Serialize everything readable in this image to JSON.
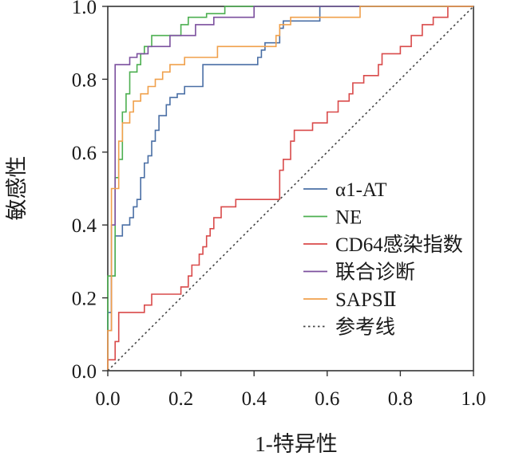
{
  "chart_data": {
    "type": "line",
    "title": "",
    "xlabel": "1-特异性",
    "ylabel": "敏感性",
    "xlim": [
      0,
      1
    ],
    "ylim": [
      0,
      1
    ],
    "xticks": [
      "0.0",
      "0.2",
      "0.4",
      "0.6",
      "0.8",
      "1.0"
    ],
    "yticks": [
      "0.0",
      "0.2",
      "0.4",
      "0.6",
      "0.8",
      "1.0"
    ],
    "grid": false,
    "legend_position": "lower-right",
    "series": [
      {
        "name": "α1-AT",
        "color": "#4a6fa5",
        "style": "solid",
        "points": [
          [
            0,
            0
          ],
          [
            0,
            0.16
          ],
          [
            0.01,
            0.16
          ],
          [
            0.01,
            0.26
          ],
          [
            0.02,
            0.26
          ],
          [
            0.02,
            0.37
          ],
          [
            0.04,
            0.37
          ],
          [
            0.04,
            0.4
          ],
          [
            0.06,
            0.4
          ],
          [
            0.06,
            0.42
          ],
          [
            0.07,
            0.42
          ],
          [
            0.07,
            0.45
          ],
          [
            0.08,
            0.45
          ],
          [
            0.08,
            0.47
          ],
          [
            0.09,
            0.47
          ],
          [
            0.09,
            0.53
          ],
          [
            0.1,
            0.53
          ],
          [
            0.1,
            0.57
          ],
          [
            0.11,
            0.57
          ],
          [
            0.11,
            0.59
          ],
          [
            0.12,
            0.59
          ],
          [
            0.12,
            0.63
          ],
          [
            0.13,
            0.63
          ],
          [
            0.13,
            0.66
          ],
          [
            0.14,
            0.66
          ],
          [
            0.14,
            0.7
          ],
          [
            0.16,
            0.7
          ],
          [
            0.16,
            0.73
          ],
          [
            0.17,
            0.73
          ],
          [
            0.17,
            0.75
          ],
          [
            0.19,
            0.75
          ],
          [
            0.19,
            0.76
          ],
          [
            0.21,
            0.76
          ],
          [
            0.21,
            0.78
          ],
          [
            0.26,
            0.78
          ],
          [
            0.26,
            0.84
          ],
          [
            0.41,
            0.84
          ],
          [
            0.41,
            0.86
          ],
          [
            0.42,
            0.86
          ],
          [
            0.42,
            0.88
          ],
          [
            0.43,
            0.88
          ],
          [
            0.43,
            0.9
          ],
          [
            0.47,
            0.9
          ],
          [
            0.47,
            0.94
          ],
          [
            0.48,
            0.94
          ],
          [
            0.48,
            0.96
          ],
          [
            0.58,
            0.96
          ],
          [
            0.58,
            1.0
          ],
          [
            1.0,
            1.0
          ]
        ]
      },
      {
        "name": "NE",
        "color": "#4caf50",
        "style": "solid",
        "points": [
          [
            0,
            0
          ],
          [
            0,
            0.26
          ],
          [
            0.02,
            0.26
          ],
          [
            0.02,
            0.53
          ],
          [
            0.03,
            0.53
          ],
          [
            0.03,
            0.58
          ],
          [
            0.04,
            0.58
          ],
          [
            0.04,
            0.71
          ],
          [
            0.05,
            0.71
          ],
          [
            0.05,
            0.76
          ],
          [
            0.06,
            0.76
          ],
          [
            0.06,
            0.82
          ],
          [
            0.08,
            0.82
          ],
          [
            0.08,
            0.84
          ],
          [
            0.09,
            0.84
          ],
          [
            0.09,
            0.87
          ],
          [
            0.1,
            0.87
          ],
          [
            0.1,
            0.89
          ],
          [
            0.12,
            0.89
          ],
          [
            0.12,
            0.92
          ],
          [
            0.2,
            0.92
          ],
          [
            0.2,
            0.95
          ],
          [
            0.22,
            0.95
          ],
          [
            0.22,
            0.97
          ],
          [
            0.27,
            0.97
          ],
          [
            0.27,
            0.98
          ],
          [
            0.32,
            0.98
          ],
          [
            0.32,
            1.0
          ],
          [
            1.0,
            1.0
          ]
        ]
      },
      {
        "name": "CD64感染指数",
        "color": "#d94a4a",
        "style": "solid",
        "points": [
          [
            0,
            0
          ],
          [
            0,
            0.03
          ],
          [
            0.02,
            0.03
          ],
          [
            0.02,
            0.08
          ],
          [
            0.03,
            0.08
          ],
          [
            0.03,
            0.16
          ],
          [
            0.1,
            0.16
          ],
          [
            0.1,
            0.18
          ],
          [
            0.12,
            0.18
          ],
          [
            0.12,
            0.21
          ],
          [
            0.2,
            0.21
          ],
          [
            0.2,
            0.23
          ],
          [
            0.22,
            0.23
          ],
          [
            0.22,
            0.26
          ],
          [
            0.23,
            0.26
          ],
          [
            0.23,
            0.29
          ],
          [
            0.25,
            0.29
          ],
          [
            0.25,
            0.32
          ],
          [
            0.26,
            0.32
          ],
          [
            0.26,
            0.34
          ],
          [
            0.27,
            0.34
          ],
          [
            0.27,
            0.37
          ],
          [
            0.28,
            0.37
          ],
          [
            0.28,
            0.39
          ],
          [
            0.29,
            0.39
          ],
          [
            0.29,
            0.42
          ],
          [
            0.31,
            0.42
          ],
          [
            0.31,
            0.45
          ],
          [
            0.35,
            0.45
          ],
          [
            0.35,
            0.47
          ],
          [
            0.47,
            0.47
          ],
          [
            0.47,
            0.55
          ],
          [
            0.48,
            0.55
          ],
          [
            0.48,
            0.58
          ],
          [
            0.5,
            0.58
          ],
          [
            0.5,
            0.63
          ],
          [
            0.51,
            0.63
          ],
          [
            0.51,
            0.66
          ],
          [
            0.56,
            0.66
          ],
          [
            0.56,
            0.68
          ],
          [
            0.6,
            0.68
          ],
          [
            0.6,
            0.71
          ],
          [
            0.63,
            0.71
          ],
          [
            0.63,
            0.74
          ],
          [
            0.66,
            0.74
          ],
          [
            0.66,
            0.76
          ],
          [
            0.67,
            0.76
          ],
          [
            0.67,
            0.79
          ],
          [
            0.7,
            0.79
          ],
          [
            0.7,
            0.81
          ],
          [
            0.74,
            0.81
          ],
          [
            0.74,
            0.84
          ],
          [
            0.75,
            0.84
          ],
          [
            0.75,
            0.87
          ],
          [
            0.8,
            0.87
          ],
          [
            0.8,
            0.89
          ],
          [
            0.83,
            0.89
          ],
          [
            0.83,
            0.92
          ],
          [
            0.86,
            0.92
          ],
          [
            0.86,
            0.95
          ],
          [
            0.89,
            0.95
          ],
          [
            0.89,
            0.97
          ],
          [
            0.93,
            0.97
          ],
          [
            0.93,
            1.0
          ],
          [
            1.0,
            1.0
          ]
        ]
      },
      {
        "name": "联合诊断",
        "color": "#7b4f9e",
        "style": "solid",
        "points": [
          [
            0,
            0
          ],
          [
            0,
            0.11
          ],
          [
            0.01,
            0.11
          ],
          [
            0.01,
            0.4
          ],
          [
            0.02,
            0.4
          ],
          [
            0.02,
            0.84
          ],
          [
            0.06,
            0.84
          ],
          [
            0.06,
            0.86
          ],
          [
            0.08,
            0.86
          ],
          [
            0.08,
            0.87
          ],
          [
            0.11,
            0.87
          ],
          [
            0.11,
            0.89
          ],
          [
            0.17,
            0.89
          ],
          [
            0.17,
            0.92
          ],
          [
            0.24,
            0.92
          ],
          [
            0.24,
            0.95
          ],
          [
            0.29,
            0.95
          ],
          [
            0.29,
            0.97
          ],
          [
            0.4,
            0.97
          ],
          [
            0.4,
            1.0
          ],
          [
            1.0,
            1.0
          ]
        ]
      },
      {
        "name": "SAPSⅡ",
        "color": "#f0a04b",
        "style": "solid",
        "points": [
          [
            0,
            0
          ],
          [
            0,
            0.11
          ],
          [
            0.01,
            0.11
          ],
          [
            0.01,
            0.5
          ],
          [
            0.03,
            0.5
          ],
          [
            0.03,
            0.63
          ],
          [
            0.04,
            0.63
          ],
          [
            0.04,
            0.68
          ],
          [
            0.06,
            0.68
          ],
          [
            0.06,
            0.71
          ],
          [
            0.07,
            0.71
          ],
          [
            0.07,
            0.74
          ],
          [
            0.09,
            0.74
          ],
          [
            0.09,
            0.76
          ],
          [
            0.11,
            0.76
          ],
          [
            0.11,
            0.78
          ],
          [
            0.13,
            0.78
          ],
          [
            0.13,
            0.8
          ],
          [
            0.15,
            0.8
          ],
          [
            0.15,
            0.82
          ],
          [
            0.17,
            0.82
          ],
          [
            0.17,
            0.84
          ],
          [
            0.21,
            0.84
          ],
          [
            0.21,
            0.86
          ],
          [
            0.3,
            0.86
          ],
          [
            0.3,
            0.89
          ],
          [
            0.46,
            0.89
          ],
          [
            0.46,
            0.92
          ],
          [
            0.47,
            0.92
          ],
          [
            0.47,
            0.95
          ],
          [
            0.5,
            0.95
          ],
          [
            0.5,
            0.97
          ],
          [
            0.69,
            0.97
          ],
          [
            0.69,
            1.0
          ],
          [
            1.0,
            1.0
          ]
        ]
      },
      {
        "name": "参考线",
        "color": "#444444",
        "style": "dotted",
        "points": [
          [
            0,
            0
          ],
          [
            1,
            1
          ]
        ]
      }
    ]
  }
}
